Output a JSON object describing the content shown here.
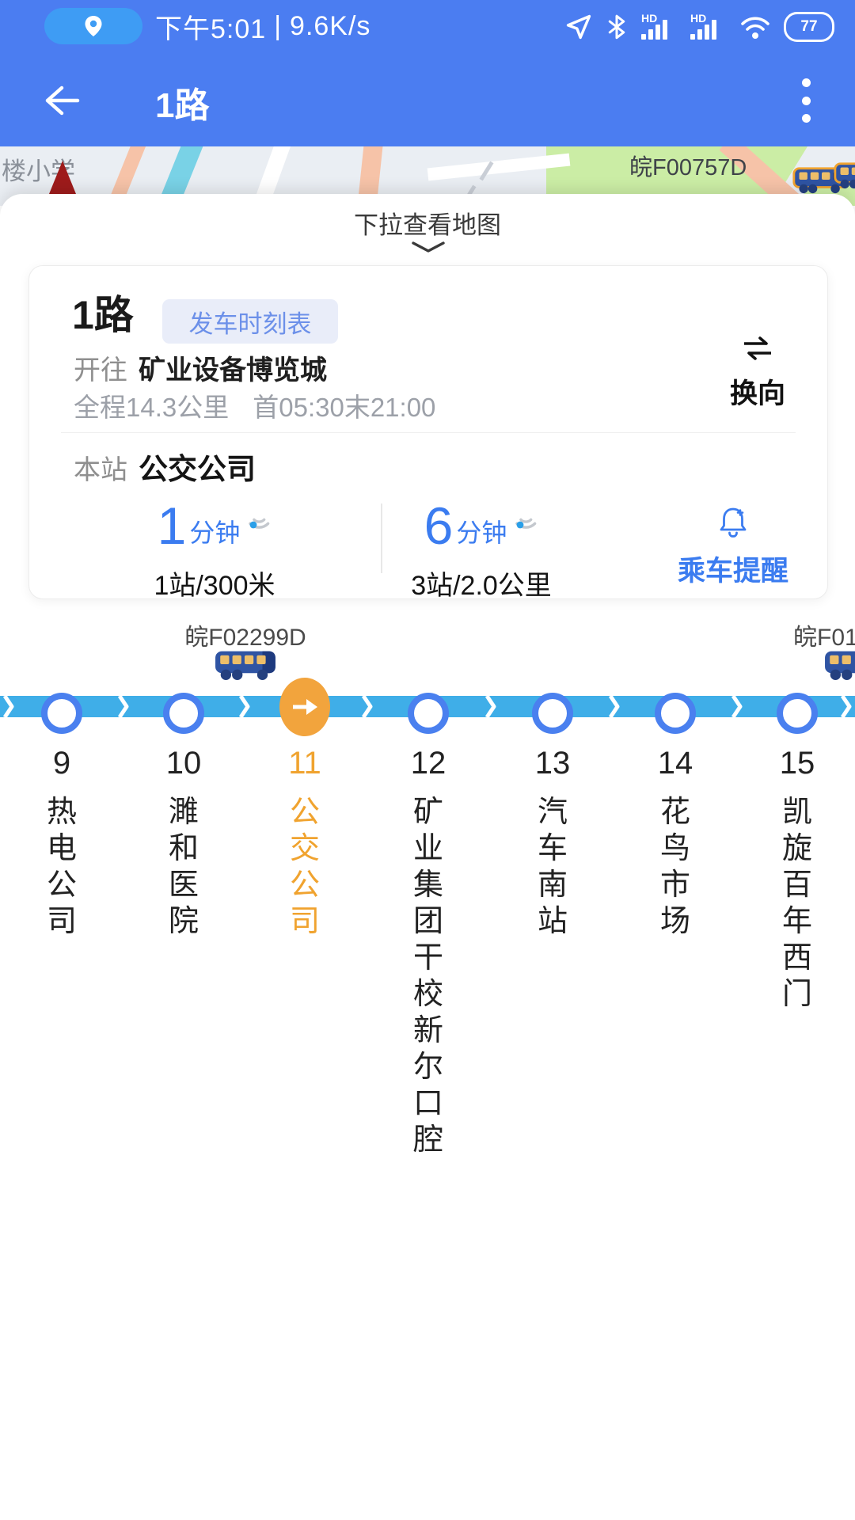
{
  "status_bar": {
    "time": "下午5:01",
    "separator": "|",
    "net_speed": "9.6K/s",
    "battery_percent": "77",
    "hd_label": "HD"
  },
  "app_bar": {
    "title": "1路"
  },
  "map": {
    "pull_hint": "下拉查看地图",
    "place_label": "楼小学",
    "bus_plate": "皖F00757D"
  },
  "route_card": {
    "route_name": "1路",
    "schedule_badge": "发车时刻表",
    "direction_prefix": "开往",
    "destination": "矿业设备博览城",
    "total_distance": "全程14.3公里",
    "service_hours": "首05:30末21:00",
    "reverse_label": "换向",
    "current_stop_prefix": "本站",
    "current_stop_name": "公交公司",
    "etas": [
      {
        "value": "1",
        "unit": "分钟",
        "detail": "1站/300米"
      },
      {
        "value": "6",
        "unit": "分钟",
        "detail": "3站/2.0公里"
      }
    ],
    "reminder_label": "乘车提醒"
  },
  "route_line": {
    "buses": [
      {
        "plate": "皖F02299D"
      },
      {
        "plate": "皖F01"
      }
    ],
    "stations": [
      {
        "number": "9",
        "name": "热电公司",
        "current": false
      },
      {
        "number": "10",
        "name": "濉和医院",
        "current": false
      },
      {
        "number": "11",
        "name": "公交公司",
        "current": true
      },
      {
        "number": "12",
        "name": "矿业集团干校新尔口腔",
        "current": false
      },
      {
        "number": "13",
        "name": "汽车南站",
        "current": false
      },
      {
        "number": "14",
        "name": "花鸟市场",
        "current": false
      },
      {
        "number": "15",
        "name": "凯旋百年西门",
        "current": false
      }
    ]
  },
  "colors": {
    "primary_blue": "#4B7DF1",
    "status_pill_blue": "#3E9CF4",
    "eta_blue": "#3B7CF0",
    "route_band_cyan": "#3FAEE8",
    "stop_ring_blue": "#4A80EF",
    "current_stop_orange": "#F2A43D",
    "badge_bg": "#E9EDF9",
    "badge_text": "#6C90E9"
  }
}
